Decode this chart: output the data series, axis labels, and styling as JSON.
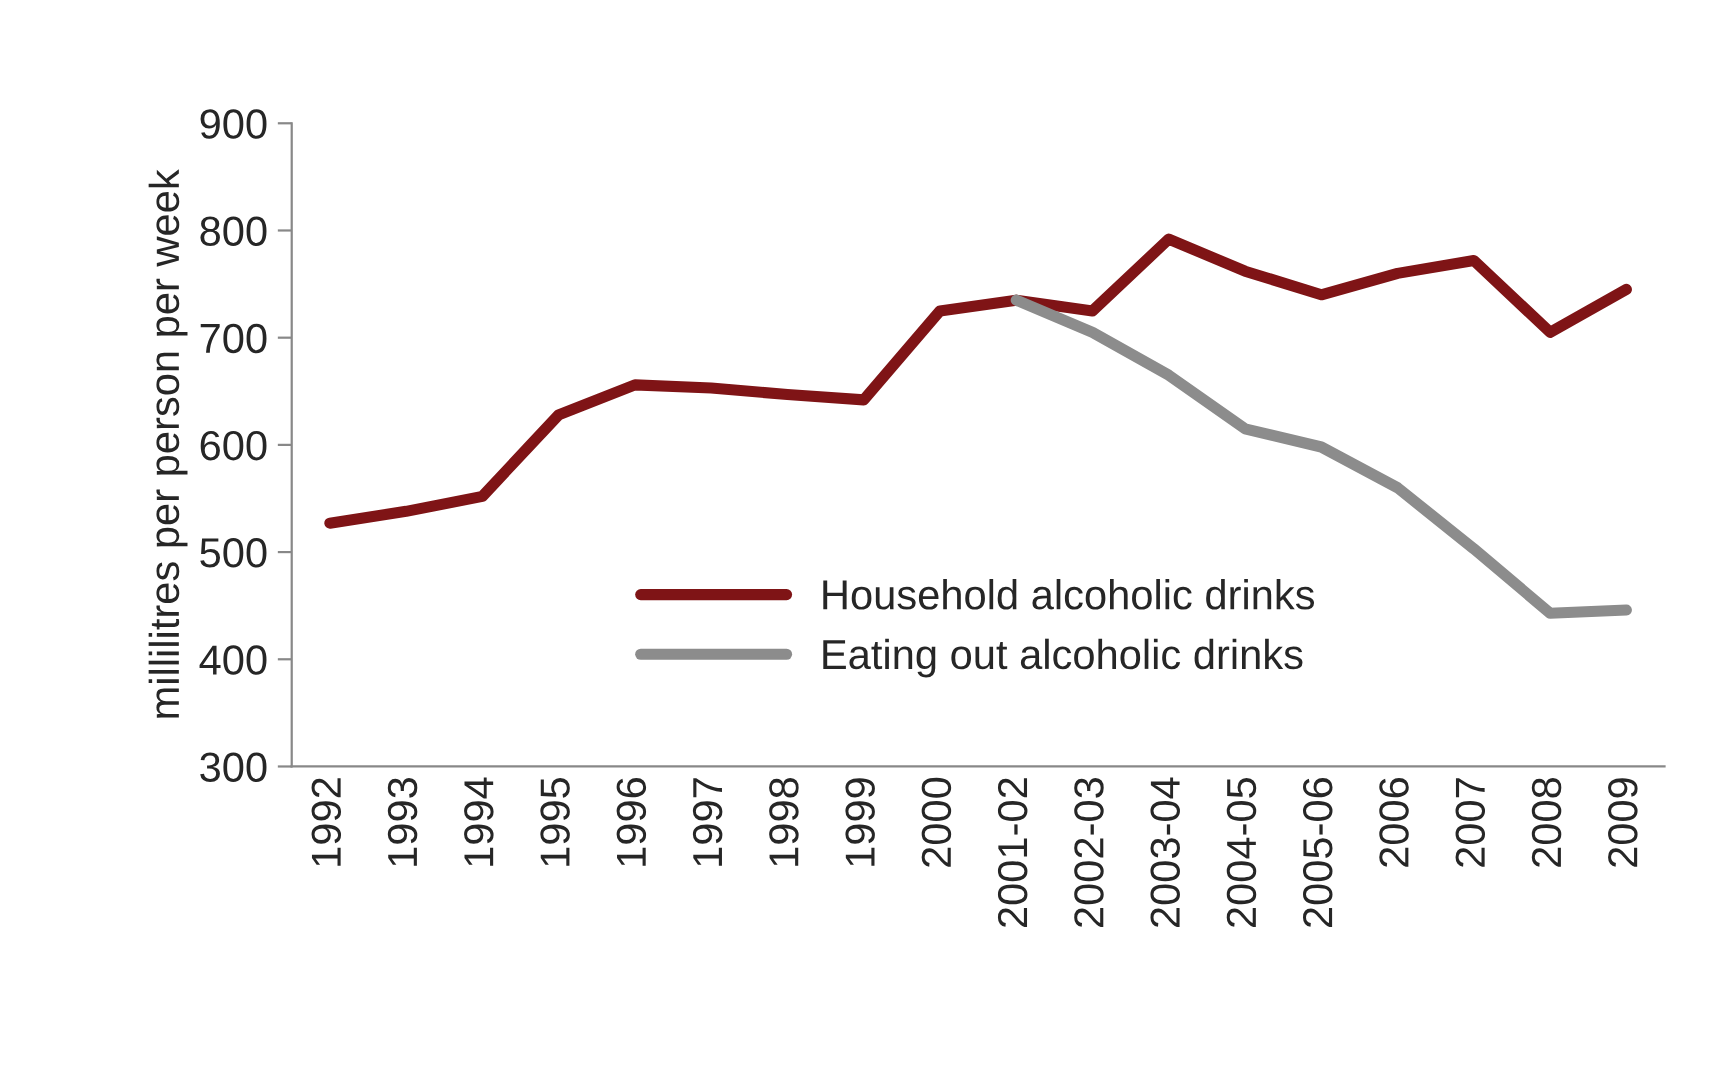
{
  "chart_data": {
    "type": "line",
    "ylabel": "millilitres per person per week",
    "categories": [
      "1992",
      "1993",
      "1994",
      "1995",
      "1996",
      "1997",
      "1998",
      "1999",
      "2000",
      "2001-02",
      "2002-03",
      "2003-04",
      "2004-05",
      "2005-06",
      "2006",
      "2007",
      "2008",
      "2009"
    ],
    "series": [
      {
        "name": "Household alcoholic drinks",
        "color": "#7f1416",
        "values": [
          527,
          538,
          552,
          628,
          656,
          653,
          647,
          642,
          725,
          735,
          725,
          792,
          762,
          740,
          760,
          772,
          705,
          745
        ]
      },
      {
        "name": "Eating out alcoholic drinks",
        "color": "#8c8c8c",
        "values": [
          null,
          null,
          null,
          null,
          null,
          null,
          null,
          null,
          null,
          735,
          705,
          665,
          615,
          598,
          560,
          503,
          443,
          446
        ]
      }
    ],
    "ylim": [
      300,
      900
    ],
    "yticks": [
      300,
      400,
      500,
      600,
      700,
      800,
      900
    ],
    "grid": false,
    "legend": "bottom",
    "marker": "none",
    "line_style": "solid"
  }
}
